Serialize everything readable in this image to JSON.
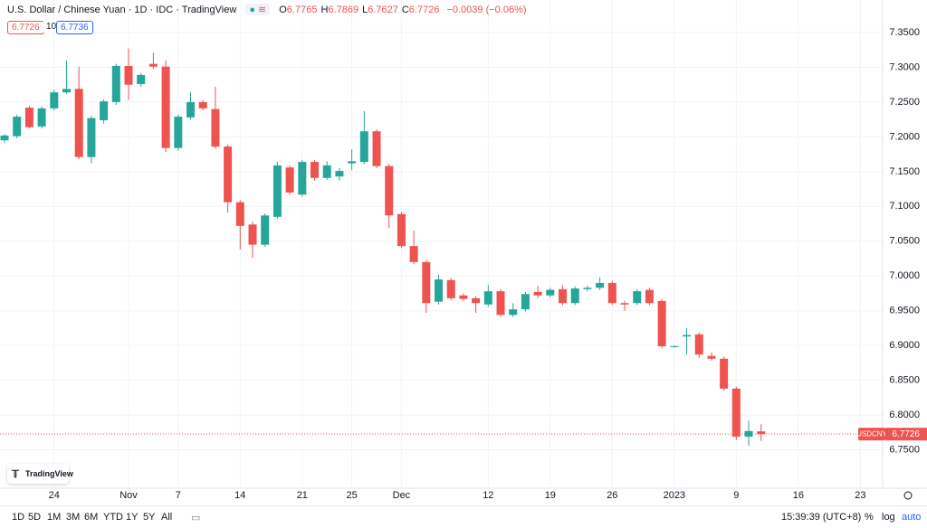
{
  "chart_data": {
    "type": "candlestick",
    "title": "U.S. Dollar / Chinese Yuan · 1D · IDC · TradingView",
    "ohlc_labels": [
      {
        "label": "O",
        "value": 6.7765
      },
      {
        "label": "H",
        "value": 6.7869
      },
      {
        "label": "L",
        "value": 6.7627
      },
      {
        "label": "C",
        "value": 6.7726
      }
    ],
    "change": "−0.0039 (−0.06%)",
    "bid": 6.7726,
    "spread": 10,
    "ask": 6.7736,
    "symbol": "USDCNY",
    "last": 6.7726,
    "up_color": "#26a69a",
    "down_color": "#ef5350",
    "candles": [
      [
        7.195,
        7.204,
        7.191,
        7.202
      ],
      [
        7.201,
        7.232,
        7.198,
        7.229
      ],
      [
        7.242,
        7.245,
        7.212,
        7.214
      ],
      [
        7.215,
        7.244,
        7.212,
        7.241
      ],
      [
        7.241,
        7.268,
        7.238,
        7.264
      ],
      [
        7.264,
        7.31,
        7.262,
        7.269
      ],
      [
        7.269,
        7.301,
        7.168,
        7.171
      ],
      [
        7.171,
        7.23,
        7.162,
        7.227
      ],
      [
        7.224,
        7.254,
        7.219,
        7.251
      ],
      [
        7.25,
        7.305,
        7.246,
        7.302
      ],
      [
        7.302,
        7.327,
        7.253,
        7.275
      ],
      [
        7.276,
        7.292,
        7.272,
        7.289
      ],
      [
        7.305,
        7.321,
        7.298,
        7.301
      ],
      [
        7.301,
        7.31,
        7.178,
        7.184
      ],
      [
        7.184,
        7.232,
        7.18,
        7.229
      ],
      [
        7.228,
        7.264,
        7.225,
        7.25
      ],
      [
        7.25,
        7.253,
        7.238,
        7.241
      ],
      [
        7.24,
        7.272,
        7.183,
        7.186
      ],
      [
        7.186,
        7.189,
        7.091,
        7.106
      ],
      [
        7.106,
        7.109,
        7.038,
        7.072
      ],
      [
        7.074,
        7.078,
        7.026,
        7.045
      ],
      [
        7.045,
        7.09,
        7.042,
        7.087
      ],
      [
        7.085,
        7.164,
        7.082,
        7.159
      ],
      [
        7.156,
        7.159,
        7.117,
        7.12
      ],
      [
        7.117,
        7.167,
        7.114,
        7.164
      ],
      [
        7.164,
        7.167,
        7.137,
        7.141
      ],
      [
        7.141,
        7.165,
        7.138,
        7.159
      ],
      [
        7.143,
        7.155,
        7.137,
        7.151
      ],
      [
        7.162,
        7.182,
        7.152,
        7.165
      ],
      [
        7.164,
        7.237,
        7.161,
        7.208
      ],
      [
        7.208,
        7.211,
        7.155,
        7.158
      ],
      [
        7.158,
        7.161,
        7.069,
        7.087
      ],
      [
        7.089,
        7.092,
        7.04,
        7.043
      ],
      [
        7.043,
        7.065,
        7.017,
        7.02
      ],
      [
        7.02,
        7.023,
        6.947,
        6.961
      ],
      [
        6.963,
        7.002,
        6.959,
        6.995
      ],
      [
        6.994,
        6.997,
        6.965,
        6.968
      ],
      [
        6.972,
        6.975,
        6.964,
        6.967
      ],
      [
        6.968,
        6.971,
        6.947,
        6.961
      ],
      [
        6.959,
        6.987,
        6.956,
        6.978
      ],
      [
        6.978,
        6.981,
        6.941,
        6.944
      ],
      [
        6.944,
        6.961,
        6.941,
        6.952
      ],
      [
        6.952,
        6.977,
        6.949,
        6.974
      ],
      [
        6.977,
        6.986,
        6.968,
        6.972
      ],
      [
        6.972,
        6.983,
        6.969,
        6.98
      ],
      [
        6.981,
        6.987,
        6.958,
        6.961
      ],
      [
        6.961,
        6.985,
        6.958,
        6.982
      ],
      [
        6.981,
        6.986,
        6.978,
        6.983
      ],
      [
        6.983,
        6.998,
        6.98,
        6.99
      ],
      [
        6.99,
        6.993,
        6.958,
        6.961
      ],
      [
        6.961,
        6.964,
        6.95,
        6.959
      ],
      [
        6.961,
        6.981,
        6.958,
        6.978
      ],
      [
        6.98,
        6.983,
        6.958,
        6.961
      ],
      [
        6.964,
        6.967,
        6.896,
        6.899
      ],
      [
        6.898,
        6.9,
        6.897,
        6.899
      ],
      [
        6.913,
        6.925,
        6.887,
        6.915
      ],
      [
        6.916,
        6.919,
        6.882,
        6.887
      ],
      [
        6.885,
        6.89,
        6.878,
        6.881
      ],
      [
        6.881,
        6.884,
        6.835,
        6.838
      ],
      [
        6.838,
        6.841,
        6.764,
        6.769
      ],
      [
        6.769,
        6.792,
        6.756,
        6.777
      ],
      [
        6.7765,
        6.7869,
        6.7627,
        6.7726
      ]
    ],
    "xlim": [
      -0.365,
      70.8
    ],
    "xticks": [
      {
        "value": 4,
        "label": "24"
      },
      {
        "value": 10,
        "label": "Nov"
      },
      {
        "value": 14,
        "label": "7"
      },
      {
        "value": 19,
        "label": "14"
      },
      {
        "value": 24,
        "label": "21"
      },
      {
        "value": 28,
        "label": "25"
      },
      {
        "value": 32,
        "label": "Dec"
      },
      {
        "value": 39,
        "label": "12"
      },
      {
        "value": 44,
        "label": "19"
      },
      {
        "value": 49,
        "label": "26"
      },
      {
        "value": 54,
        "label": "2023"
      },
      {
        "value": 59,
        "label": "9"
      },
      {
        "value": 64,
        "label": "16"
      },
      {
        "value": 69,
        "label": "23"
      }
    ],
    "ylim": [
      6.6948,
      7.3968
    ],
    "yticks": [
      {
        "value": 7.35,
        "label": "7.3500"
      },
      {
        "value": 7.3,
        "label": "7.3000"
      },
      {
        "value": 7.25,
        "label": "7.2500"
      },
      {
        "value": 7.2,
        "label": "7.2000"
      },
      {
        "value": 7.15,
        "label": "7.1500"
      },
      {
        "value": 7.1,
        "label": "7.1000"
      },
      {
        "value": 7.05,
        "label": "7.0500"
      },
      {
        "value": 7.0,
        "label": "7.0000"
      },
      {
        "value": 6.95,
        "label": "6.9500"
      },
      {
        "value": 6.9,
        "label": "6.9000"
      },
      {
        "value": 6.85,
        "label": "6.8500"
      },
      {
        "value": 6.8,
        "label": "6.8000"
      },
      {
        "value": 6.75,
        "label": "6.7500"
      }
    ],
    "grid": true
  },
  "logo": "TradingView",
  "toolbar": {
    "ranges": [
      "1D",
      "5D",
      "1M",
      "3M",
      "6M",
      "YTD",
      "1Y",
      "5Y",
      "All"
    ],
    "time": "15:39:39 (UTC+8)",
    "options": [
      "%",
      "log",
      "auto"
    ]
  }
}
